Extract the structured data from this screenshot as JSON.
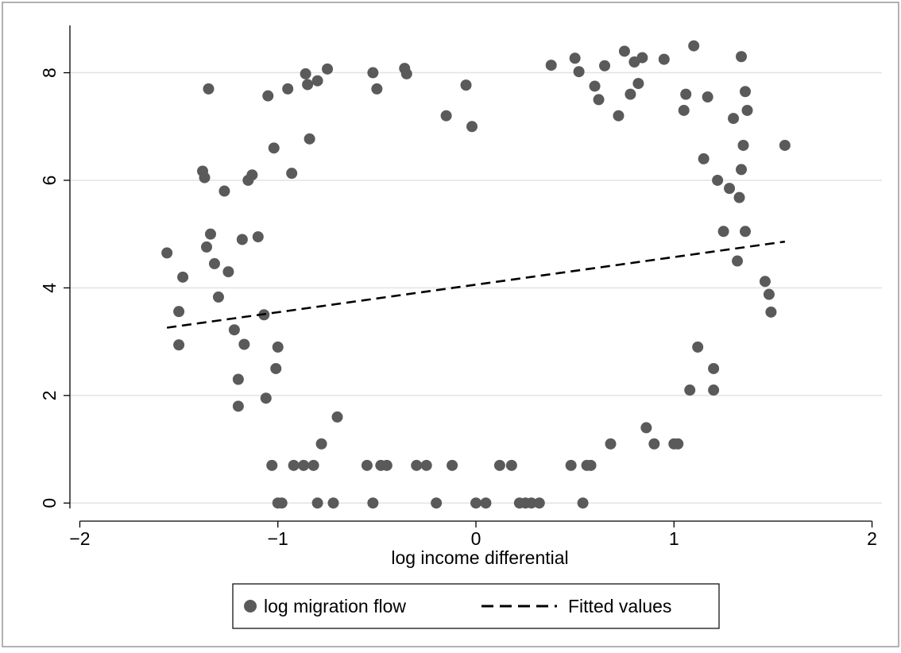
{
  "chart_data": {
    "type": "scatter",
    "title": "",
    "xlabel": "log income differential",
    "ylabel": "",
    "xlim": [
      -2.05,
      2.05
    ],
    "ylim": [
      -0.1,
      8.85
    ],
    "xticks": [
      -2,
      -1,
      0,
      1,
      2
    ],
    "xtick_labels": [
      "−2",
      "−1",
      "0",
      "1",
      "2"
    ],
    "yticks": [
      0,
      2,
      4,
      6,
      8
    ],
    "ytick_labels": [
      "0",
      "2",
      "4",
      "6",
      "8"
    ],
    "grid": "horizontal",
    "legend_position": "bottom",
    "colors": {
      "points": "#5a5a5a",
      "fit": "#000000",
      "grid": "#e3e3e3",
      "axis": "#000000",
      "frame": "#999999",
      "background": "#ffffff"
    },
    "series": [
      {
        "name": "log migration flow",
        "kind": "scatter",
        "points": [
          [
            -1.56,
            4.65
          ],
          [
            -1.5,
            3.56
          ],
          [
            -1.48,
            4.2
          ],
          [
            -1.5,
            2.94
          ],
          [
            -1.38,
            6.17
          ],
          [
            -1.37,
            6.05
          ],
          [
            -1.36,
            4.76
          ],
          [
            -1.35,
            7.7
          ],
          [
            -1.34,
            5.0
          ],
          [
            -1.32,
            4.45
          ],
          [
            -1.3,
            3.83
          ],
          [
            -1.27,
            5.8
          ],
          [
            -1.25,
            4.3
          ],
          [
            -1.22,
            3.22
          ],
          [
            -1.2,
            2.3
          ],
          [
            -1.2,
            1.8
          ],
          [
            -1.18,
            4.9
          ],
          [
            -1.17,
            2.95
          ],
          [
            -1.15,
            6.0
          ],
          [
            -1.13,
            6.1
          ],
          [
            -1.1,
            4.95
          ],
          [
            -1.07,
            3.5
          ],
          [
            -1.06,
            1.95
          ],
          [
            -1.05,
            7.57
          ],
          [
            -1.03,
            0.7
          ],
          [
            -1.02,
            6.6
          ],
          [
            -1.01,
            2.5
          ],
          [
            -1.0,
            2.9
          ],
          [
            -1.0,
            0.0
          ],
          [
            -0.98,
            0.0
          ],
          [
            -0.95,
            7.7
          ],
          [
            -0.93,
            6.13
          ],
          [
            -0.92,
            0.7
          ],
          [
            -0.87,
            0.7
          ],
          [
            -0.86,
            7.98
          ],
          [
            -0.85,
            7.78
          ],
          [
            -0.84,
            6.77
          ],
          [
            -0.82,
            0.7
          ],
          [
            -0.8,
            7.85
          ],
          [
            -0.8,
            0.0
          ],
          [
            -0.78,
            1.1
          ],
          [
            -0.75,
            8.07
          ],
          [
            -0.72,
            0.0
          ],
          [
            -0.7,
            1.6
          ],
          [
            -0.55,
            0.7
          ],
          [
            -0.52,
            0.0
          ],
          [
            -0.52,
            8.0
          ],
          [
            -0.5,
            7.7
          ],
          [
            -0.48,
            0.7
          ],
          [
            -0.45,
            0.7
          ],
          [
            -0.36,
            8.08
          ],
          [
            -0.35,
            7.98
          ],
          [
            -0.3,
            0.7
          ],
          [
            -0.25,
            0.7
          ],
          [
            -0.2,
            0.0
          ],
          [
            -0.15,
            7.2
          ],
          [
            -0.12,
            0.7
          ],
          [
            -0.05,
            7.77
          ],
          [
            -0.02,
            7.0
          ],
          [
            0.0,
            0.0
          ],
          [
            0.05,
            0.0
          ],
          [
            0.12,
            0.7
          ],
          [
            0.18,
            0.7
          ],
          [
            0.22,
            0.0
          ],
          [
            0.25,
            0.0
          ],
          [
            0.28,
            0.0
          ],
          [
            0.32,
            0.0
          ],
          [
            0.38,
            8.14
          ],
          [
            0.48,
            0.7
          ],
          [
            0.5,
            8.27
          ],
          [
            0.52,
            8.02
          ],
          [
            0.54,
            0.0
          ],
          [
            0.56,
            0.7
          ],
          [
            0.58,
            0.7
          ],
          [
            0.6,
            7.75
          ],
          [
            0.62,
            7.5
          ],
          [
            0.65,
            8.13
          ],
          [
            0.68,
            1.1
          ],
          [
            0.72,
            7.2
          ],
          [
            0.75,
            8.4
          ],
          [
            0.78,
            7.6
          ],
          [
            0.8,
            8.2
          ],
          [
            0.82,
            7.8
          ],
          [
            0.84,
            8.28
          ],
          [
            0.86,
            1.4
          ],
          [
            0.9,
            1.1
          ],
          [
            0.95,
            8.25
          ],
          [
            1.0,
            1.1
          ],
          [
            1.02,
            1.1
          ],
          [
            1.05,
            7.3
          ],
          [
            1.06,
            7.6
          ],
          [
            1.08,
            2.1
          ],
          [
            1.1,
            8.5
          ],
          [
            1.12,
            2.9
          ],
          [
            1.15,
            6.4
          ],
          [
            1.17,
            7.55
          ],
          [
            1.2,
            2.5
          ],
          [
            1.2,
            2.1
          ],
          [
            1.22,
            6.0
          ],
          [
            1.25,
            5.05
          ],
          [
            1.28,
            5.85
          ],
          [
            1.3,
            7.15
          ],
          [
            1.32,
            4.5
          ],
          [
            1.34,
            8.3
          ],
          [
            1.35,
            6.65
          ],
          [
            1.36,
            7.65
          ],
          [
            1.37,
            7.3
          ],
          [
            1.36,
            5.05
          ],
          [
            1.46,
            4.12
          ],
          [
            1.48,
            3.88
          ],
          [
            1.49,
            3.55
          ],
          [
            1.56,
            6.65
          ],
          [
            1.34,
            6.2
          ],
          [
            1.33,
            5.68
          ]
        ]
      },
      {
        "name": "Fitted values",
        "kind": "line",
        "style": "dashed",
        "points": [
          [
            -1.56,
            3.26
          ],
          [
            1.56,
            4.86
          ]
        ]
      }
    ]
  }
}
